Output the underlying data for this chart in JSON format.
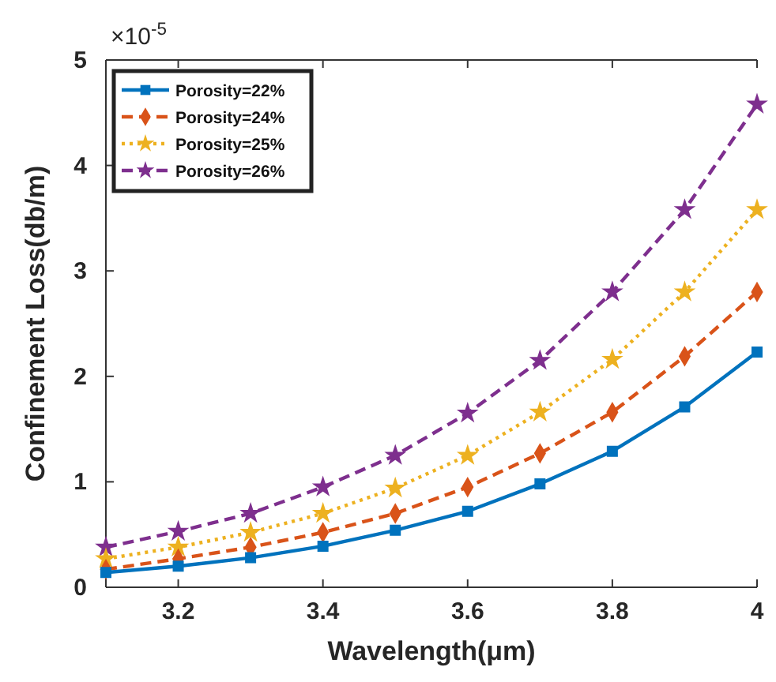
{
  "chart_data": {
    "type": "line",
    "xlabel": "Wavelength(μm)",
    "ylabel": "Confinement Loss(db/m)",
    "annotations": [
      "×10$^{-5}$"
    ],
    "x": [
      3.1,
      3.2,
      3.3,
      3.4,
      3.5,
      3.6,
      3.7,
      3.8,
      3.9,
      4.0
    ],
    "xlim": [
      3.1,
      4.0
    ],
    "xticks": [
      {
        "value": 3.2,
        "label": "3.2"
      },
      {
        "value": 3.4,
        "label": "3.4"
      },
      {
        "value": 3.6,
        "label": "3.6"
      },
      {
        "value": 3.8,
        "label": "3.8"
      },
      {
        "value": 4,
        "label": "4"
      }
    ],
    "ylim": [
      0,
      5
    ],
    "yticks": [
      0,
      1,
      2,
      3,
      4,
      5
    ],
    "grid": false,
    "legend": "top left",
    "series": [
      {
        "name": "Porosity=22%",
        "color": "#0072bd",
        "marker": "square",
        "line_style": "solid",
        "values": [
          0.14,
          0.2,
          0.28,
          0.39,
          0.54,
          0.72,
          0.98,
          1.29,
          1.71,
          2.23
        ]
      },
      {
        "name": "Porosity=24%",
        "color": "#d95319",
        "marker": "diamond",
        "line_style": "dashed",
        "values": [
          0.17,
          0.27,
          0.38,
          0.52,
          0.7,
          0.95,
          1.27,
          1.66,
          2.19,
          2.8
        ]
      },
      {
        "name": "Porosity=25%",
        "color": "#edb120",
        "marker": "star",
        "line_style": "dotted",
        "values": [
          0.27,
          0.38,
          0.52,
          0.7,
          0.94,
          1.25,
          1.66,
          2.16,
          2.8,
          3.58
        ]
      },
      {
        "name": "Porosity=26%",
        "color": "#7e2f8e",
        "marker": "star",
        "line_style": "dashed",
        "values": [
          0.38,
          0.53,
          0.7,
          0.95,
          1.25,
          1.65,
          2.15,
          2.8,
          3.58,
          4.58
        ]
      }
    ]
  }
}
